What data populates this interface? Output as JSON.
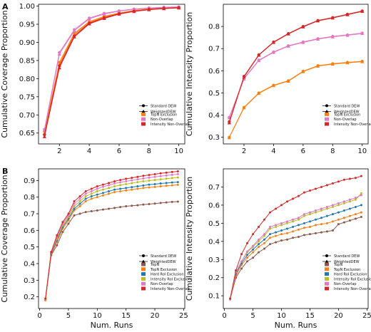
{
  "panel_labels": [
    "A",
    "B"
  ],
  "legend_markers": [
    {
      "label": "Standard DEW",
      "marker": "circle"
    },
    {
      "label": "WeightedDEW",
      "marker": "triangle"
    }
  ],
  "colors": {
    "TopN": "#8c564b",
    "TopN Exclusion": "#ff7f0e",
    "Hard RoI Exclusion": "#1f77b4",
    "Intensity RoI Exclusion": "#bcbd22",
    "Non-Overlap": "#e377c2",
    "Intensity Non-Overlap": "#d62728"
  },
  "chart_data": [
    {
      "id": "A-left",
      "type": "line",
      "xlabel": "",
      "ylabel": "Cumulative Coverage Proportion",
      "xlim": [
        0.6,
        10.4
      ],
      "ylim": [
        0.62,
        1.005
      ],
      "xticks": [
        "2",
        "4",
        "6",
        "8",
        "10"
      ],
      "yticks": [
        "0.65",
        "0.70",
        "0.75",
        "0.80",
        "0.85",
        "0.90",
        "0.95",
        "1.00"
      ],
      "x": [
        1,
        2,
        3,
        4,
        5,
        6,
        7,
        8,
        9,
        10
      ],
      "legend": [
        "TopN Exclusion",
        "Non-Overlap",
        "Intensity Non-Overlap"
      ],
      "series": [
        {
          "name": "TopN Exclusion",
          "marker": "circle",
          "values": [
            0.655,
            0.845,
            0.925,
            0.957,
            0.972,
            0.981,
            0.988,
            0.992,
            0.995,
            0.997
          ]
        },
        {
          "name": "TopN Exclusion",
          "marker": "triangle",
          "values": [
            0.65,
            0.84,
            0.922,
            0.955,
            0.97,
            0.98,
            0.987,
            0.991,
            0.994,
            0.996
          ]
        },
        {
          "name": "Non-Overlap",
          "marker": "circle",
          "values": [
            0.66,
            0.872,
            0.935,
            0.967,
            0.98,
            0.987,
            0.992,
            0.995,
            0.997,
            0.998
          ]
        },
        {
          "name": "Non-Overlap",
          "marker": "triangle",
          "values": [
            0.657,
            0.868,
            0.932,
            0.965,
            0.978,
            0.986,
            0.991,
            0.994,
            0.996,
            0.997
          ]
        },
        {
          "name": "Intensity Non-Overlap",
          "marker": "circle",
          "values": [
            0.645,
            0.835,
            0.918,
            0.953,
            0.968,
            0.979,
            0.986,
            0.991,
            0.994,
            0.996
          ]
        },
        {
          "name": "Intensity Non-Overlap",
          "marker": "triangle",
          "values": [
            0.64,
            0.83,
            0.915,
            0.951,
            0.966,
            0.978,
            0.985,
            0.99,
            0.993,
            0.995
          ]
        }
      ]
    },
    {
      "id": "A-right",
      "type": "line",
      "xlabel": "",
      "ylabel": "Cumulative Intensity Proportion",
      "xlim": [
        0.6,
        10.4
      ],
      "ylim": [
        0.27,
        0.9
      ],
      "xticks": [
        "2",
        "4",
        "6",
        "8",
        "10"
      ],
      "yticks": [
        "0.3",
        "0.4",
        "0.5",
        "0.6",
        "0.7",
        "0.8"
      ],
      "x": [
        1,
        2,
        3,
        4,
        5,
        6,
        7,
        8,
        9,
        10
      ],
      "legend": [
        "TopN Exclusion",
        "Non-Overlap",
        "Intensity Non-Overlap"
      ],
      "series": [
        {
          "name": "TopN Exclusion",
          "marker": "circle",
          "values": [
            0.3,
            0.435,
            0.5,
            0.535,
            0.555,
            0.598,
            0.623,
            0.632,
            0.638,
            0.643
          ]
        },
        {
          "name": "TopN Exclusion",
          "marker": "triangle",
          "values": [
            0.298,
            0.433,
            0.498,
            0.533,
            0.553,
            0.596,
            0.621,
            0.63,
            0.636,
            0.641
          ]
        },
        {
          "name": "Non-Overlap",
          "marker": "circle",
          "values": [
            0.39,
            0.565,
            0.648,
            0.685,
            0.713,
            0.73,
            0.745,
            0.755,
            0.762,
            0.77
          ]
        },
        {
          "name": "Non-Overlap",
          "marker": "triangle",
          "values": [
            0.388,
            0.563,
            0.646,
            0.683,
            0.711,
            0.728,
            0.743,
            0.753,
            0.76,
            0.768
          ]
        },
        {
          "name": "Intensity Non-Overlap",
          "marker": "circle",
          "values": [
            0.37,
            0.575,
            0.672,
            0.73,
            0.768,
            0.8,
            0.827,
            0.84,
            0.855,
            0.87
          ]
        },
        {
          "name": "Intensity Non-Overlap",
          "marker": "triangle",
          "values": [
            0.365,
            0.572,
            0.67,
            0.728,
            0.766,
            0.798,
            0.825,
            0.838,
            0.853,
            0.868
          ]
        }
      ]
    },
    {
      "id": "B-left",
      "type": "line",
      "xlabel": "Num. Runs",
      "ylabel": "Cumulative Coverage Proportion",
      "xlim": [
        -0.2,
        25.2
      ],
      "ylim": [
        0.13,
        0.97
      ],
      "xticks": [
        "0",
        "5",
        "10",
        "15",
        "20",
        "25"
      ],
      "yticks": [
        "0.2",
        "0.3",
        "0.4",
        "0.5",
        "0.6",
        "0.7",
        "0.8",
        "0.9"
      ],
      "x": [
        1,
        2,
        3,
        4,
        5,
        6,
        7,
        8,
        9,
        10,
        11,
        12,
        13,
        14,
        15,
        16,
        17,
        18,
        19,
        20,
        21,
        22,
        23,
        24
      ],
      "legend": [
        "TopN",
        "TopN Exclusion",
        "Hard RoI Exclusion",
        "Intensity RoI Exclusion",
        "Non-Overlap",
        "Intensity Non-Overlap"
      ],
      "series": [
        {
          "name": "TopN",
          "marker": "circle",
          "values": [
            0.18,
            0.45,
            0.51,
            0.59,
            0.64,
            0.69,
            0.7,
            0.71,
            0.715,
            0.72,
            0.725,
            0.73,
            0.735,
            0.74,
            0.745,
            0.748,
            0.751,
            0.755,
            0.758,
            0.761,
            0.765,
            0.768,
            0.771,
            0.773
          ]
        },
        {
          "name": "TopN Exclusion",
          "marker": "circle",
          "values": [
            0.18,
            0.455,
            0.53,
            0.61,
            0.66,
            0.72,
            0.745,
            0.775,
            0.79,
            0.8,
            0.81,
            0.82,
            0.83,
            0.835,
            0.84,
            0.845,
            0.85,
            0.855,
            0.858,
            0.861,
            0.865,
            0.868,
            0.871,
            0.874
          ]
        },
        {
          "name": "Hard RoI Exclusion",
          "marker": "circle",
          "values": [
            0.185,
            0.46,
            0.54,
            0.62,
            0.67,
            0.73,
            0.76,
            0.79,
            0.805,
            0.815,
            0.825,
            0.835,
            0.845,
            0.85,
            0.855,
            0.86,
            0.865,
            0.87,
            0.875,
            0.878,
            0.882,
            0.885,
            0.888,
            0.89
          ]
        },
        {
          "name": "Intensity RoI Exclusion",
          "marker": "circle",
          "values": [
            0.185,
            0.465,
            0.55,
            0.63,
            0.68,
            0.745,
            0.775,
            0.805,
            0.82,
            0.835,
            0.845,
            0.855,
            0.865,
            0.872,
            0.878,
            0.884,
            0.89,
            0.895,
            0.899,
            0.903,
            0.907,
            0.911,
            0.915,
            0.918
          ]
        },
        {
          "name": "Non-Overlap",
          "marker": "circle",
          "values": [
            0.19,
            0.465,
            0.56,
            0.64,
            0.69,
            0.76,
            0.79,
            0.82,
            0.835,
            0.85,
            0.862,
            0.872,
            0.882,
            0.889,
            0.895,
            0.901,
            0.907,
            0.912,
            0.917,
            0.922,
            0.926,
            0.93,
            0.934,
            0.938
          ]
        },
        {
          "name": "Intensity Non-Overlap",
          "marker": "circle",
          "values": [
            0.19,
            0.47,
            0.57,
            0.65,
            0.7,
            0.775,
            0.805,
            0.835,
            0.85,
            0.865,
            0.875,
            0.885,
            0.895,
            0.903,
            0.91,
            0.916,
            0.922,
            0.928,
            0.933,
            0.938,
            0.943,
            0.947,
            0.951,
            0.955
          ]
        }
      ]
    },
    {
      "id": "B-right",
      "type": "line",
      "xlabel": "Num. Runs",
      "ylabel": "Cumulative Intensity Proportion",
      "xlim": [
        -0.2,
        25.2
      ],
      "ylim": [
        0.03,
        0.8
      ],
      "xticks": [
        "0",
        "5",
        "10",
        "15",
        "20",
        "25"
      ],
      "yticks": [
        "0.1",
        "0.2",
        "0.3",
        "0.4",
        "0.5",
        "0.6",
        "0.7"
      ],
      "x": [
        1,
        2,
        3,
        4,
        5,
        6,
        7,
        8,
        9,
        10,
        11,
        12,
        13,
        14,
        15,
        16,
        17,
        18,
        19,
        20,
        21,
        22,
        23,
        24
      ],
      "legend": [
        "TopN",
        "TopN Exclusion",
        "Hard RoI Exclusion",
        "Intensity RoI Exclusion",
        "Non-Overlap",
        "Intensity Non-Overlap"
      ],
      "series": [
        {
          "name": "TopN",
          "marker": "circle",
          "values": [
            0.08,
            0.2,
            0.25,
            0.29,
            0.31,
            0.34,
            0.36,
            0.385,
            0.395,
            0.405,
            0.41,
            0.42,
            0.425,
            0.435,
            0.44,
            0.445,
            0.45,
            0.455,
            0.46,
            0.495,
            0.505,
            0.515,
            0.525,
            0.535
          ]
        },
        {
          "name": "TopN Exclusion",
          "marker": "circle",
          "values": [
            0.08,
            0.21,
            0.27,
            0.31,
            0.34,
            0.37,
            0.39,
            0.42,
            0.43,
            0.44,
            0.445,
            0.455,
            0.465,
            0.475,
            0.48,
            0.49,
            0.495,
            0.5,
            0.51,
            0.52,
            0.53,
            0.54,
            0.55,
            0.56
          ]
        },
        {
          "name": "Hard RoI Exclusion",
          "marker": "circle",
          "values": [
            0.08,
            0.22,
            0.28,
            0.325,
            0.355,
            0.385,
            0.41,
            0.44,
            0.45,
            0.46,
            0.47,
            0.48,
            0.49,
            0.5,
            0.51,
            0.52,
            0.53,
            0.54,
            0.55,
            0.56,
            0.57,
            0.58,
            0.59,
            0.6
          ]
        },
        {
          "name": "Intensity RoI Exclusion",
          "marker": "circle",
          "values": [
            0.08,
            0.23,
            0.29,
            0.34,
            0.37,
            0.4,
            0.43,
            0.47,
            0.48,
            0.49,
            0.5,
            0.51,
            0.52,
            0.54,
            0.55,
            0.56,
            0.57,
            0.58,
            0.59,
            0.6,
            0.61,
            0.62,
            0.63,
            0.665
          ]
        },
        {
          "name": "Non-Overlap",
          "marker": "circle",
          "values": [
            0.08,
            0.23,
            0.29,
            0.345,
            0.375,
            0.41,
            0.44,
            0.48,
            0.49,
            0.5,
            0.51,
            0.52,
            0.53,
            0.55,
            0.56,
            0.57,
            0.58,
            0.59,
            0.6,
            0.61,
            0.62,
            0.63,
            0.64,
            0.655
          ]
        },
        {
          "name": "Intensity Non-Overlap",
          "marker": "circle",
          "values": [
            0.085,
            0.24,
            0.33,
            0.39,
            0.44,
            0.48,
            0.52,
            0.56,
            0.58,
            0.6,
            0.62,
            0.635,
            0.65,
            0.67,
            0.68,
            0.69,
            0.7,
            0.71,
            0.72,
            0.73,
            0.74,
            0.745,
            0.75,
            0.76
          ]
        }
      ]
    }
  ]
}
